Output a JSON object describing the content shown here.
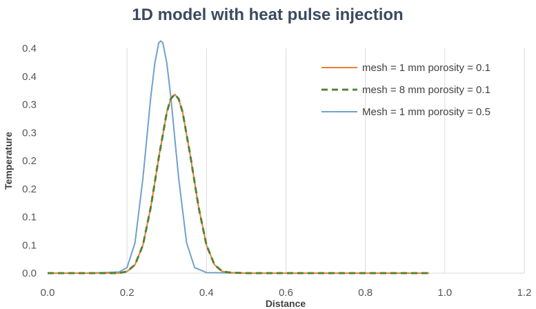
{
  "chart_data": {
    "type": "line",
    "title": "1D model with heat pulse injection",
    "xlabel": "Distance",
    "ylabel": "Temperature",
    "xlim": [
      0,
      1.2
    ],
    "ylim": [
      0,
      0.4
    ],
    "x_ticks": [
      0,
      0.2,
      0.4,
      0.6,
      0.8,
      1.0,
      1.2
    ],
    "x_tick_labels": [
      "0.0",
      "0.2",
      "0.4",
      "0.6",
      "0.8",
      "1.0",
      "1.2"
    ],
    "y_ticks": [
      0,
      0.05,
      0.1,
      0.15,
      0.2,
      0.25,
      0.3,
      0.35,
      0.4
    ],
    "y_tick_labels": [
      "0.0",
      "0.1",
      "0.1",
      "0.2",
      "0.2",
      "0.3",
      "0.3",
      "0.4",
      "0.4"
    ],
    "grid": "vertical",
    "legend_position": "top-right",
    "series": [
      {
        "name": "mesh = 1 mm porosity = 0.1",
        "color": "#ed7d31",
        "style": "solid",
        "x": [
          0.0,
          0.1,
          0.18,
          0.2,
          0.22,
          0.24,
          0.26,
          0.28,
          0.3,
          0.31,
          0.32,
          0.33,
          0.34,
          0.36,
          0.38,
          0.4,
          0.42,
          0.44,
          0.46,
          0.5,
          0.6,
          0.8,
          0.96
        ],
        "y": [
          0.0,
          0.0,
          0.0,
          0.003,
          0.015,
          0.05,
          0.118,
          0.206,
          0.286,
          0.31,
          0.318,
          0.31,
          0.286,
          0.206,
          0.118,
          0.05,
          0.015,
          0.003,
          0.001,
          0.0,
          0.0,
          0.0,
          0.0
        ]
      },
      {
        "name": "mesh = 8 mm porosity = 0.1",
        "color": "#548235",
        "style": "dashed",
        "x": [
          0.0,
          0.1,
          0.18,
          0.2,
          0.22,
          0.24,
          0.26,
          0.28,
          0.3,
          0.31,
          0.32,
          0.33,
          0.34,
          0.36,
          0.38,
          0.4,
          0.42,
          0.44,
          0.46,
          0.5,
          0.6,
          0.8,
          0.96
        ],
        "y": [
          0.0,
          0.0,
          0.0,
          0.003,
          0.015,
          0.05,
          0.118,
          0.206,
          0.286,
          0.31,
          0.318,
          0.31,
          0.286,
          0.206,
          0.118,
          0.05,
          0.015,
          0.003,
          0.001,
          0.0,
          0.0,
          0.0,
          0.0
        ]
      },
      {
        "name": "Mesh = 1 mm porosity = 0.5",
        "color": "#6fa0cc",
        "style": "solid",
        "x": [
          0.0,
          0.1,
          0.18,
          0.2,
          0.22,
          0.24,
          0.26,
          0.27,
          0.28,
          0.285,
          0.29,
          0.3,
          0.31,
          0.32,
          0.33,
          0.35,
          0.37,
          0.4,
          0.5,
          0.6,
          0.8,
          0.96
        ],
        "y": [
          0.0,
          0.0,
          0.002,
          0.01,
          0.054,
          0.169,
          0.315,
          0.374,
          0.41,
          0.413,
          0.41,
          0.374,
          0.315,
          0.241,
          0.169,
          0.054,
          0.01,
          0.001,
          0.0,
          0.0,
          0.0,
          0.0
        ]
      }
    ]
  }
}
